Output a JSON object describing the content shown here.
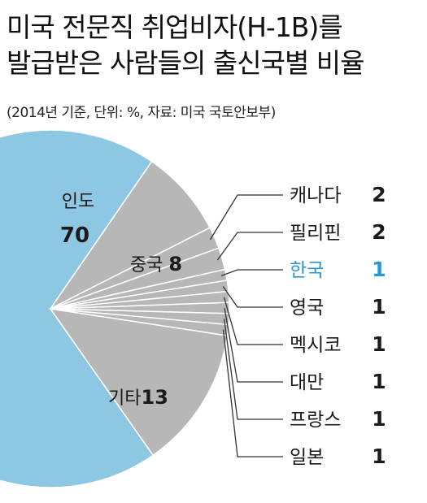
{
  "title_line1": "미국 전문직 취업비자(H-1B)를",
  "title_line2": "발급받은 사람들의 출신국별 비율",
  "note": "(2014년 기준, 단위: %, 자료: 미국 국토안보부)",
  "colors": {
    "india": "#8ec7e3",
    "other": "#b7b7b8",
    "highlight": "#2a97d4",
    "text": "#1a1a1a"
  },
  "chart_data": {
    "type": "pie",
    "title": "미국 전문직 취업비자(H-1B)를 발급받은 사람들의 출신국별 비율",
    "unit": "%",
    "slices": [
      {
        "label": "인도",
        "value": 70
      },
      {
        "label": "중국",
        "value": 8
      },
      {
        "label": "캐나다",
        "value": 2
      },
      {
        "label": "필리핀",
        "value": 2
      },
      {
        "label": "한국",
        "value": 1,
        "highlight": true
      },
      {
        "label": "영국",
        "value": 1
      },
      {
        "label": "멕시코",
        "value": 1
      },
      {
        "label": "대만",
        "value": 1
      },
      {
        "label": "프랑스",
        "value": 1
      },
      {
        "label": "일본",
        "value": 1
      },
      {
        "label": "기타",
        "value": 13
      }
    ]
  }
}
